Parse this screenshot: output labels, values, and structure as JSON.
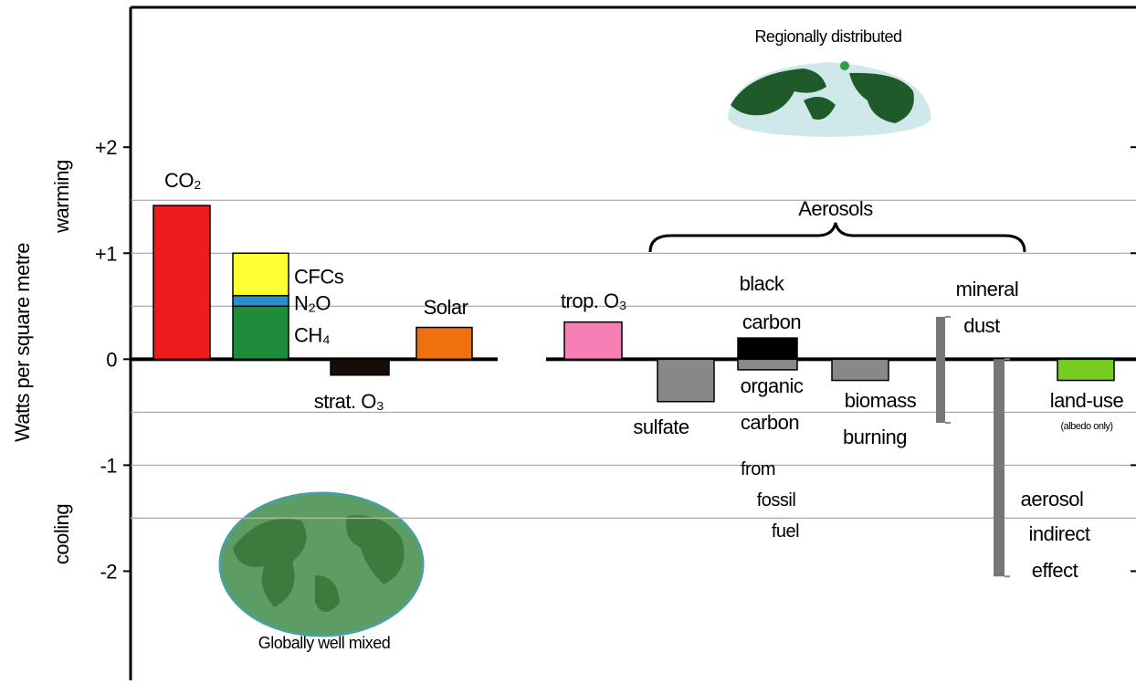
{
  "chart_data": {
    "type": "bar",
    "y_label": "Watts per square metre",
    "warming_label": "warming",
    "cooling_label": "cooling",
    "regional_label": "Regionally distributed",
    "global_label": "Globally well mixed",
    "group_label": "Aerosols",
    "ylim": [
      -3.03,
      3.32
    ],
    "yticks": [
      {
        "value": 2,
        "label": "+2"
      },
      {
        "value": 1,
        "label": "+1"
      },
      0,
      -1,
      -2
    ],
    "grid_lines": [
      1.5,
      1,
      0.5,
      -0.5,
      -1
    ],
    "ref_line": {
      "value": -1.5,
      "color": "#d8a0a0"
    },
    "items": [
      {
        "label": [
          "CO₂"
        ],
        "value": 1.45,
        "color": "#ee1c1c"
      },
      {
        "segments": [
          {
            "name": "CH₄",
            "value": 0.5,
            "color": "#1e8c3a"
          },
          {
            "name": "N₂O",
            "value": 0.1,
            "color": "#2a8fd0"
          },
          {
            "name": "CFCs",
            "value": 0.4,
            "color": "#ffff33"
          }
        ]
      },
      {
        "label": [
          "strat. O₃"
        ],
        "value": -0.15,
        "color": "#1a0a0a"
      },
      {
        "label": [
          "Solar"
        ],
        "value": 0.3,
        "color": "#f07010"
      },
      {
        "label": [
          "trop. O₃"
        ],
        "value": 0.35,
        "color": "#f77fb5"
      },
      {
        "label": [
          "sulfate"
        ],
        "value": -0.4,
        "color": "#888888"
      },
      {
        "label": [
          "black",
          "carbon"
        ],
        "value": 0.2,
        "color": "#000000"
      },
      {
        "label": [
          "organic",
          "carbon"
        ],
        "value": -0.1,
        "color": "#888888",
        "note": [
          "from",
          "fossil",
          "fuel"
        ]
      },
      {
        "label": [
          "biomass",
          "burning"
        ],
        "value": -0.2,
        "color": "#888888"
      },
      {
        "label": [
          "mineral",
          "dust"
        ],
        "range": [
          0.4,
          -0.6
        ],
        "color": "#777777"
      },
      {
        "label": [
          "aerosol",
          "indirect",
          "effect"
        ],
        "range": [
          0,
          -2.05
        ],
        "color": "#777777"
      },
      {
        "label": [
          "land-use"
        ],
        "value": -0.2,
        "color": "#77cc22",
        "note": [
          "(albedo only)"
        ]
      }
    ]
  }
}
